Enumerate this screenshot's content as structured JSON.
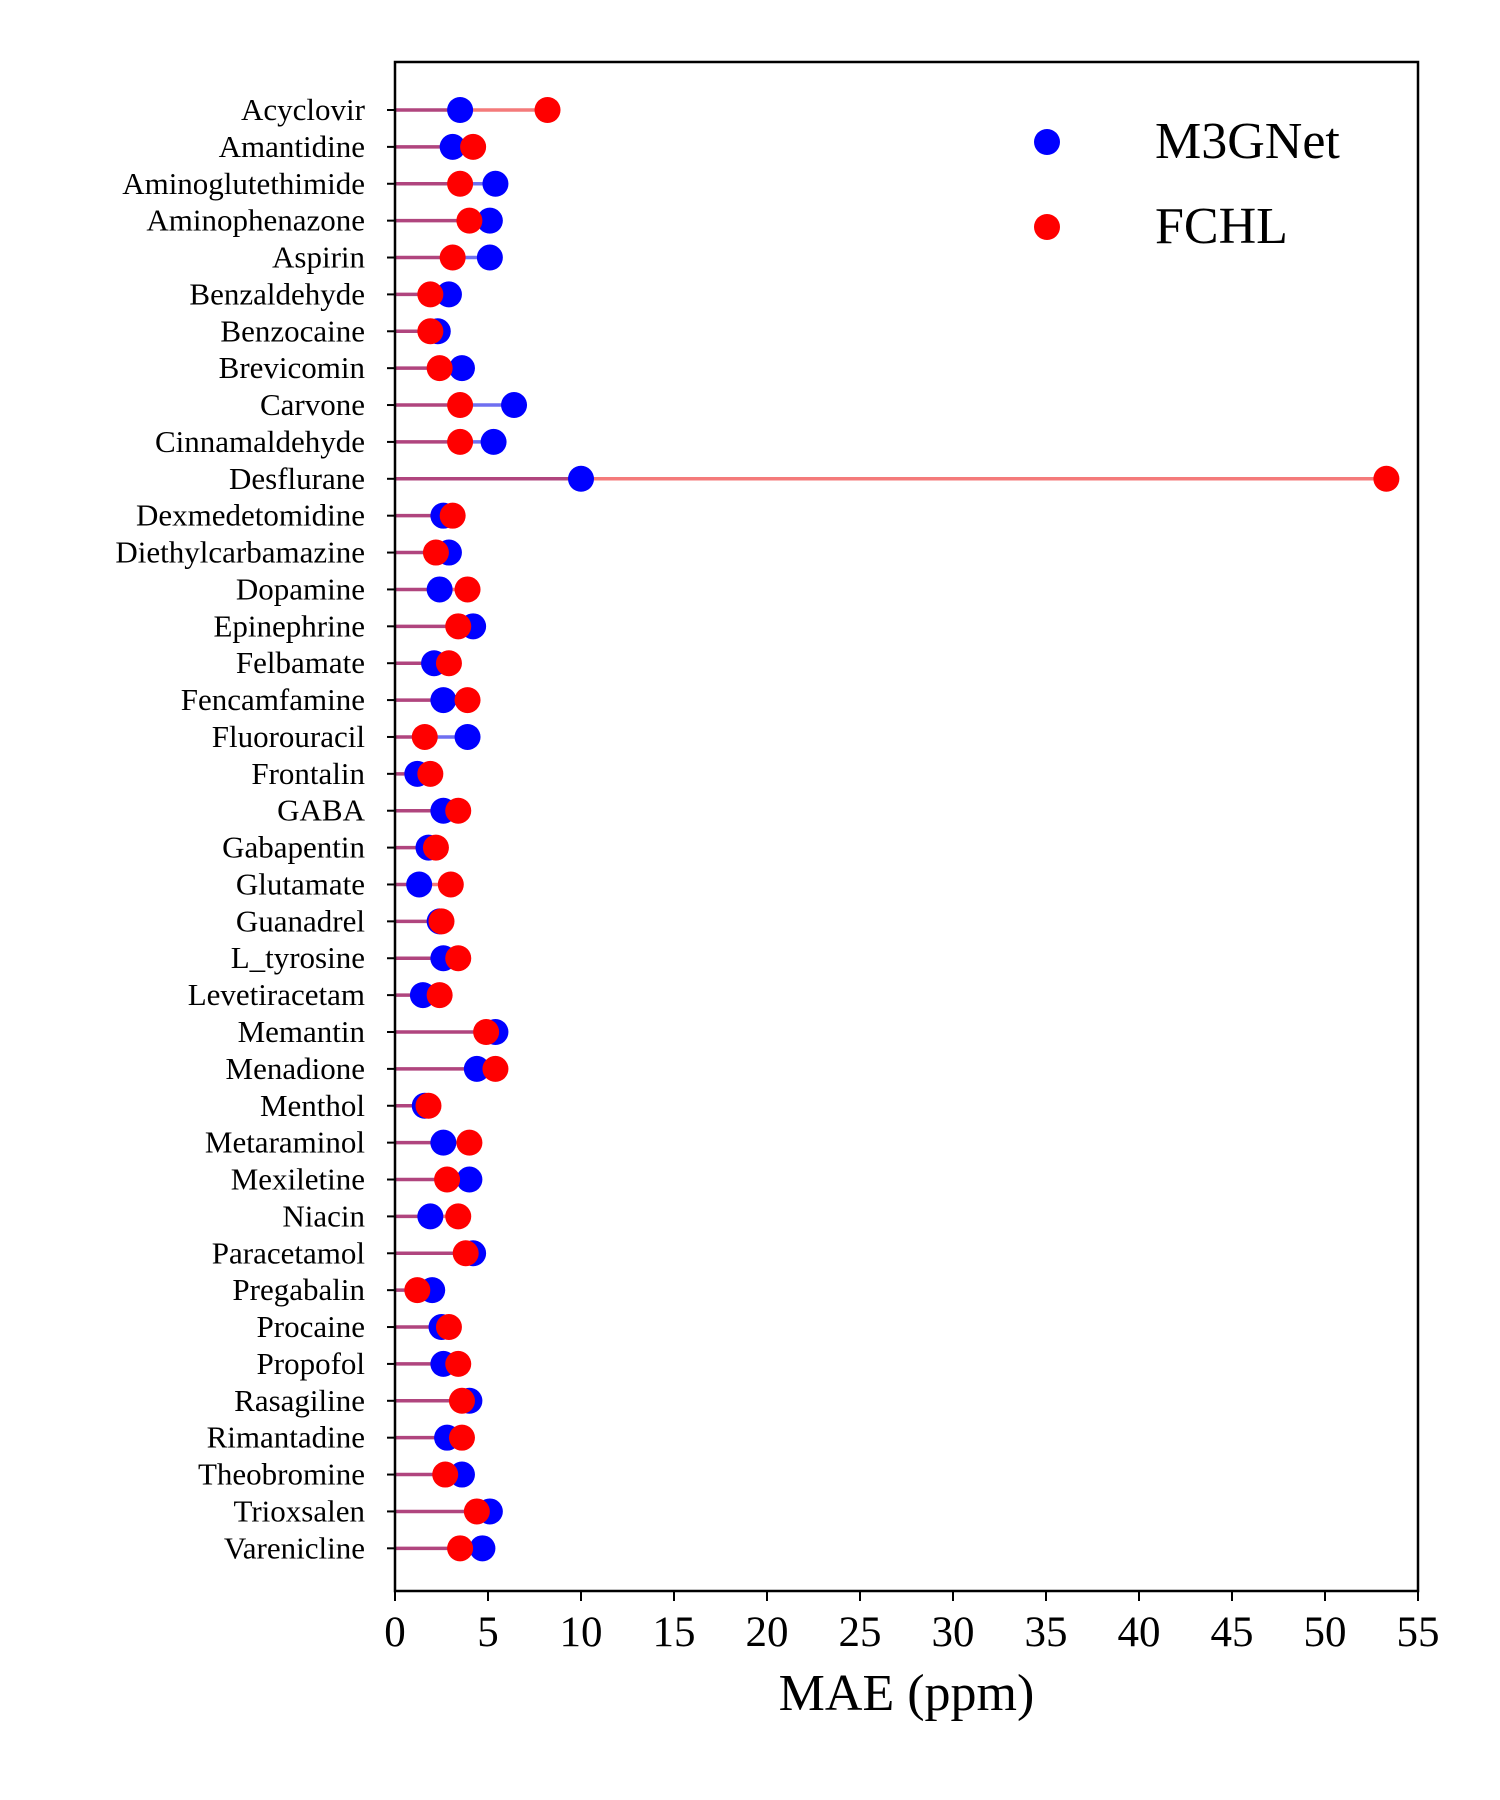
{
  "chart_data": {
    "type": "scatter",
    "orientation": "horizontal",
    "xlabel": "MAE (ppm)",
    "xlim": [
      0,
      55
    ],
    "xticks": [
      0,
      5,
      10,
      15,
      20,
      25,
      30,
      35,
      40,
      45,
      50,
      55
    ],
    "grid": false,
    "legend_position": "top-right",
    "categories": [
      "Acyclovir",
      "Amantidine",
      "Aminoglutethimide",
      "Aminophenazone",
      "Aspirin",
      "Benzaldehyde",
      "Benzocaine",
      "Brevicomin",
      "Carvone",
      "Cinnamaldehyde",
      "Desflurane",
      "Dexmedetomidine",
      "Diethylcarbamazine",
      "Dopamine",
      "Epinephrine",
      "Felbamate",
      "Fencamfamine",
      "Fluorouracil",
      "Frontalin",
      "GABA",
      "Gabapentin",
      "Glutamate",
      "Guanadrel",
      "L_tyrosine",
      "Levetiracetam",
      "Memantin",
      "Menadione",
      "Menthol",
      "Metaraminol",
      "Mexiletine",
      "Niacin",
      "Paracetamol",
      "Pregabalin",
      "Procaine",
      "Propofol",
      "Rasagiline",
      "Rimantadine",
      "Theobromine",
      "Trioxsalen",
      "Varenicline"
    ],
    "series": [
      {
        "name": "M3GNet",
        "color": "#0000ff",
        "line_color": "#6f6ff0",
        "values": [
          3.5,
          3.1,
          5.4,
          5.1,
          5.1,
          2.9,
          2.3,
          3.6,
          6.4,
          5.3,
          10.0,
          2.6,
          2.9,
          2.4,
          4.2,
          2.1,
          2.6,
          3.9,
          1.2,
          2.6,
          1.8,
          1.3,
          2.4,
          2.6,
          1.5,
          5.4,
          4.4,
          1.6,
          2.6,
          4.0,
          1.9,
          4.2,
          2.0,
          2.5,
          2.6,
          4.0,
          2.8,
          3.6,
          5.1,
          4.7
        ]
      },
      {
        "name": "FCHL",
        "color": "#ff0000",
        "line_color": "#f47a7a",
        "values": [
          8.2,
          4.2,
          3.5,
          4.0,
          3.1,
          1.9,
          1.9,
          2.4,
          3.5,
          3.5,
          53.3,
          3.1,
          2.2,
          3.9,
          3.4,
          2.9,
          3.9,
          1.6,
          1.9,
          3.4,
          2.2,
          3.0,
          2.5,
          3.4,
          2.4,
          4.9,
          5.4,
          1.8,
          4.0,
          2.8,
          3.4,
          3.8,
          1.2,
          2.9,
          3.4,
          3.6,
          3.6,
          2.7,
          4.4,
          3.5
        ]
      }
    ]
  },
  "colors": {
    "overlap_line": "#b0457e",
    "axis": "#000000",
    "background": "#ffffff"
  }
}
